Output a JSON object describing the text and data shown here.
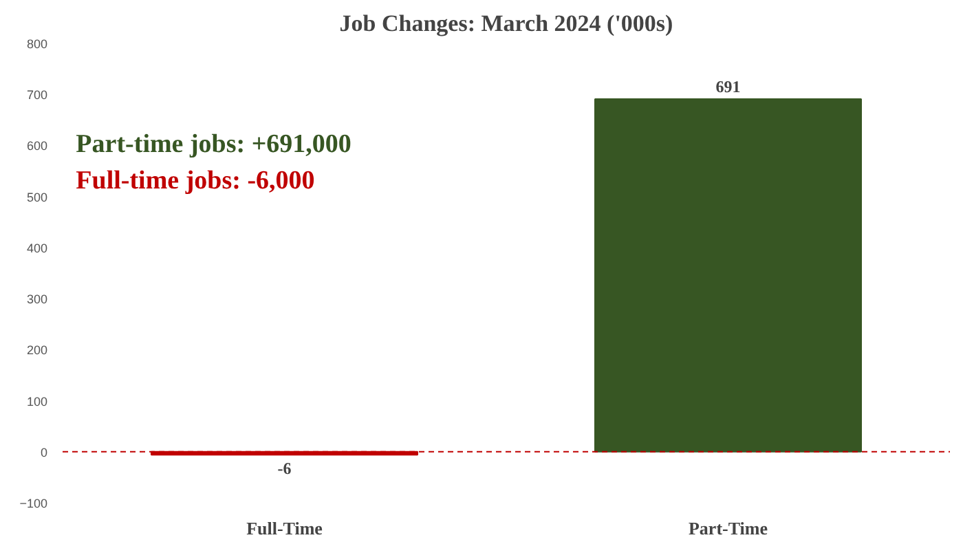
{
  "chart_data": {
    "type": "bar",
    "title": "Job Changes: March 2024 ('000s)",
    "categories": [
      "Full-Time",
      "Part-Time"
    ],
    "values": [
      -6,
      691
    ],
    "colors": [
      "#c00000",
      "#375623"
    ],
    "data_labels": true,
    "ylim": [
      -100,
      800
    ],
    "yticks": [
      -100,
      0,
      100,
      200,
      300,
      400,
      500,
      600,
      700,
      800
    ],
    "ref_lines": [
      {
        "axis": "y",
        "value": 0,
        "color": "#c00000",
        "line_style": "dashed"
      }
    ],
    "annotations": [
      "Part-time jobs: +691,000",
      "Full-time jobs: -6,000"
    ],
    "grid": false
  }
}
